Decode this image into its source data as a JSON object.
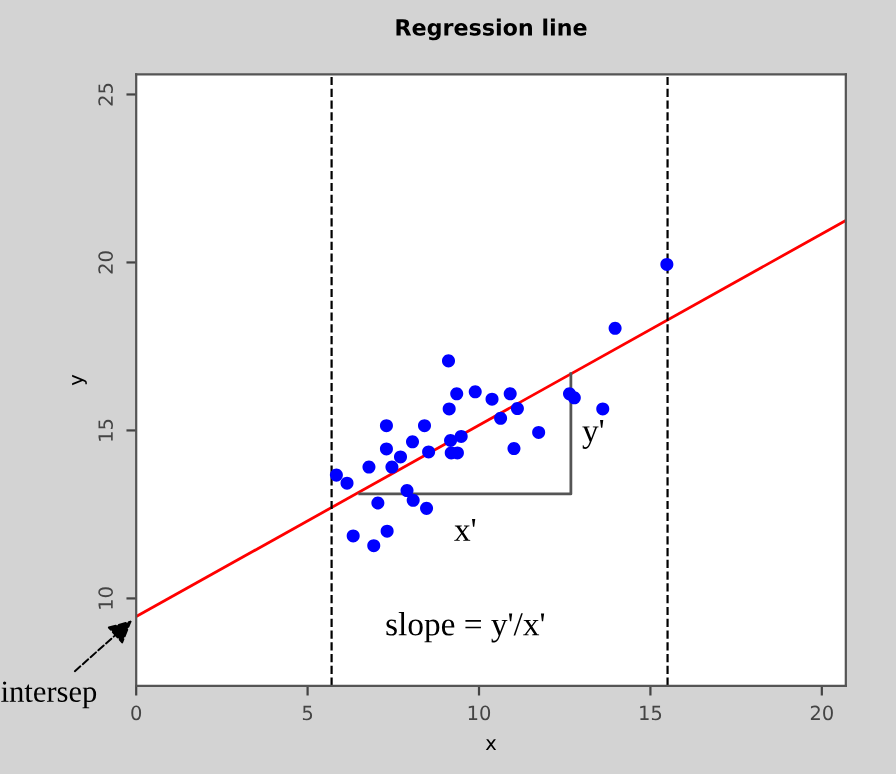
{
  "chart_data": {
    "type": "scatter",
    "title": "Regression line",
    "xlabel": "x",
    "ylabel": "y",
    "xlim": [
      0,
      20.7
    ],
    "ylim": [
      7.4,
      25.6
    ],
    "xticks": [
      0,
      5,
      10,
      15,
      20
    ],
    "yticks": [
      10,
      15,
      20,
      25
    ],
    "grid": false,
    "series": [
      {
        "color": "#0000ff",
        "x": [
          5.84,
          6.15,
          6.33,
          6.79,
          6.93,
          7.05,
          7.3,
          7.3,
          7.32,
          7.46,
          7.71,
          7.9,
          8.06,
          8.08,
          8.41,
          8.45,
          8.47,
          8.53,
          9.11,
          9.13,
          9.17,
          9.19,
          9.35,
          9.37,
          9.48,
          9.89,
          10.38,
          10.63,
          10.91,
          11.02,
          11.12,
          11.74,
          12.64,
          12.78,
          13.61,
          13.97,
          15.48
        ],
        "values": [
          13.67,
          13.43,
          11.86,
          13.91,
          11.57,
          12.84,
          15.14,
          14.45,
          12.0,
          13.91,
          14.21,
          13.21,
          14.66,
          12.92,
          15.14,
          null,
          12.68,
          14.36,
          17.07,
          15.64,
          14.7,
          14.33,
          16.09,
          14.33,
          14.82,
          16.15,
          15.93,
          15.36,
          16.09,
          14.46,
          15.65,
          14.94,
          16.09,
          15.97,
          15.64,
          18.04,
          19.94
        ]
      },
      {
        "type": "line",
        "color": "#ff0000",
        "x": [
          0,
          20.7
        ],
        "values": [
          9.46,
          21.25
        ]
      },
      {
        "type": "line",
        "color": "#555555",
        "x": [
          6.52,
          12.68,
          12.68
        ],
        "values": [
          13.11,
          13.11,
          16.69
        ]
      }
    ],
    "ref_lines": [
      {
        "axis": "x",
        "value": 5.7,
        "color": "#000000",
        "line_style": "dashed"
      },
      {
        "axis": "x",
        "value": 15.5,
        "color": "#000000",
        "line_style": "dashed"
      }
    ],
    "annotations": [
      "x'",
      "y'",
      "slope = y'/x'",
      {
        "text": "intersep",
        "x": 0,
        "y": 9.46
      }
    ]
  }
}
